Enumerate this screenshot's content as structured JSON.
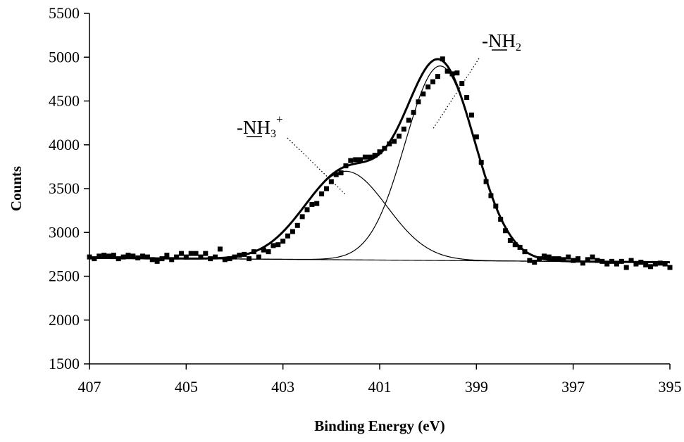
{
  "chart_data": {
    "type": "scatter",
    "xlabel": "Binding Energy (eV)",
    "ylabel": "Counts",
    "xlim": [
      407,
      395
    ],
    "ylim": [
      1500,
      5500
    ],
    "x_reversed": true,
    "x_ticks": [
      407,
      405,
      403,
      401,
      399,
      397,
      395
    ],
    "y_ticks": [
      1500,
      2000,
      2500,
      3000,
      3500,
      4000,
      4500,
      5000,
      5500
    ],
    "grid": false,
    "legend": "none",
    "annotations": [
      {
        "prefix": "-",
        "element": "N",
        "rest": "H",
        "sub": "3",
        "sup": "+",
        "points_to": [
          401.7,
          3430
        ]
      },
      {
        "prefix": "-",
        "element": "N",
        "rest": "H",
        "sub": "2",
        "sup": "",
        "points_to": [
          399.9,
          4180
        ]
      }
    ],
    "background": {
      "start": [
        407,
        2710
      ],
      "end": [
        395,
        2660
      ]
    },
    "components": [
      {
        "center": 401.7,
        "sigma": 0.85,
        "amplitude": 1010
      },
      {
        "center": 399.75,
        "sigma": 0.72,
        "amplitude": 2220
      }
    ],
    "series": [
      {
        "style": "markers",
        "points": [
          [
            407.0,
            2720
          ],
          [
            406.9,
            2700
          ],
          [
            406.8,
            2730
          ],
          [
            406.7,
            2740
          ],
          [
            406.6,
            2730
          ],
          [
            406.5,
            2740
          ],
          [
            406.4,
            2700
          ],
          [
            406.3,
            2720
          ],
          [
            406.2,
            2740
          ],
          [
            406.1,
            2730
          ],
          [
            406.0,
            2710
          ],
          [
            405.9,
            2730
          ],
          [
            405.8,
            2720
          ],
          [
            405.7,
            2690
          ],
          [
            405.6,
            2670
          ],
          [
            405.5,
            2700
          ],
          [
            405.4,
            2740
          ],
          [
            405.3,
            2690
          ],
          [
            405.2,
            2720
          ],
          [
            405.1,
            2760
          ],
          [
            405.0,
            2720
          ],
          [
            404.9,
            2760
          ],
          [
            404.8,
            2760
          ],
          [
            404.7,
            2720
          ],
          [
            404.6,
            2760
          ],
          [
            404.5,
            2700
          ],
          [
            404.4,
            2720
          ],
          [
            404.3,
            2810
          ],
          [
            404.2,
            2690
          ],
          [
            404.1,
            2700
          ],
          [
            404.0,
            2720
          ],
          [
            403.9,
            2740
          ],
          [
            403.8,
            2750
          ],
          [
            403.7,
            2700
          ],
          [
            403.6,
            2780
          ],
          [
            403.5,
            2720
          ],
          [
            403.4,
            2800
          ],
          [
            403.3,
            2780
          ],
          [
            403.2,
            2850
          ],
          [
            403.1,
            2860
          ],
          [
            403.0,
            2900
          ],
          [
            402.9,
            2960
          ],
          [
            402.8,
            3010
          ],
          [
            402.7,
            3080
          ],
          [
            402.6,
            3180
          ],
          [
            402.5,
            3260
          ],
          [
            402.4,
            3320
          ],
          [
            402.3,
            3330
          ],
          [
            402.2,
            3440
          ],
          [
            402.1,
            3500
          ],
          [
            402.0,
            3580
          ],
          [
            401.9,
            3660
          ],
          [
            401.8,
            3680
          ],
          [
            401.7,
            3760
          ],
          [
            401.6,
            3820
          ],
          [
            401.5,
            3830
          ],
          [
            401.4,
            3830
          ],
          [
            401.3,
            3860
          ],
          [
            401.2,
            3860
          ],
          [
            401.1,
            3880
          ],
          [
            401.0,
            3920
          ],
          [
            400.9,
            3960
          ],
          [
            400.8,
            4010
          ],
          [
            400.7,
            4040
          ],
          [
            400.6,
            4100
          ],
          [
            400.5,
            4180
          ],
          [
            400.4,
            4280
          ],
          [
            400.3,
            4370
          ],
          [
            400.2,
            4490
          ],
          [
            400.1,
            4580
          ],
          [
            400.0,
            4660
          ],
          [
            399.9,
            4720
          ],
          [
            399.8,
            4780
          ],
          [
            399.7,
            4980
          ],
          [
            399.6,
            4840
          ],
          [
            399.5,
            4810
          ],
          [
            399.4,
            4820
          ],
          [
            399.3,
            4700
          ],
          [
            399.2,
            4540
          ],
          [
            399.1,
            4340
          ],
          [
            399.0,
            4090
          ],
          [
            398.9,
            3800
          ],
          [
            398.8,
            3580
          ],
          [
            398.7,
            3420
          ],
          [
            398.6,
            3300
          ],
          [
            398.5,
            3150
          ],
          [
            398.4,
            3020
          ],
          [
            398.3,
            2910
          ],
          [
            398.2,
            2860
          ],
          [
            398.1,
            2830
          ],
          [
            398.0,
            2780
          ],
          [
            397.9,
            2680
          ],
          [
            397.8,
            2660
          ],
          [
            397.7,
            2700
          ],
          [
            397.6,
            2730
          ],
          [
            397.5,
            2720
          ],
          [
            397.4,
            2700
          ],
          [
            397.3,
            2700
          ],
          [
            397.2,
            2690
          ],
          [
            397.1,
            2720
          ],
          [
            397.0,
            2680
          ],
          [
            396.9,
            2700
          ],
          [
            396.8,
            2650
          ],
          [
            396.7,
            2690
          ],
          [
            396.6,
            2720
          ],
          [
            396.5,
            2680
          ],
          [
            396.4,
            2670
          ],
          [
            396.3,
            2640
          ],
          [
            396.2,
            2670
          ],
          [
            396.1,
            2640
          ],
          [
            396.0,
            2670
          ],
          [
            395.9,
            2600
          ],
          [
            395.8,
            2680
          ],
          [
            395.7,
            2640
          ],
          [
            395.6,
            2660
          ],
          [
            395.5,
            2630
          ],
          [
            395.4,
            2610
          ],
          [
            395.3,
            2640
          ],
          [
            395.2,
            2650
          ],
          [
            395.1,
            2640
          ],
          [
            395.0,
            2600
          ]
        ]
      }
    ]
  }
}
